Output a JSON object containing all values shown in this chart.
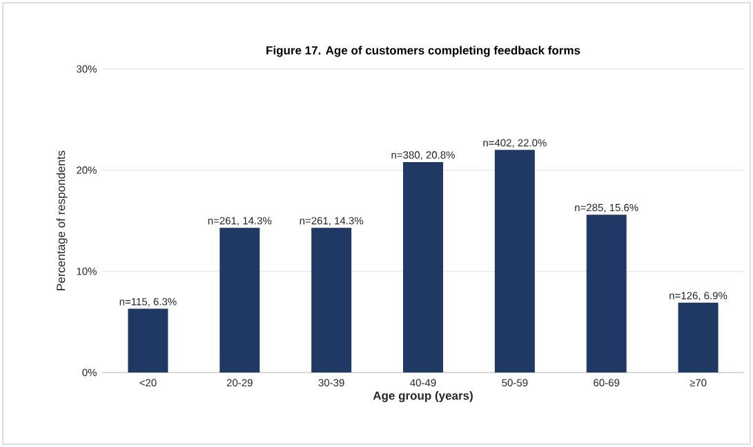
{
  "chart_data": {
    "type": "bar",
    "title": "Figure 17. Age of customers completing feedback forms",
    "xlabel": "Age group (years)",
    "ylabel": "Percentage of respondents",
    "categories": [
      "<20",
      "20-29",
      "30-39",
      "40-49",
      "50-59",
      "60-69",
      "≥70"
    ],
    "values": [
      6.3,
      14.3,
      14.3,
      20.8,
      22.0,
      15.6,
      6.9
    ],
    "value_labels": [
      "n=115, 6.3%",
      "n=261, 14.3%",
      "n=261, 14.3%",
      "n=380, 20.8%",
      "n=402, 22.0%",
      "n=285, 15.6%",
      "n=126, 6.9%"
    ],
    "color": "#203864",
    "ylim": [
      0,
      30
    ],
    "yticks": [
      {
        "value": 0,
        "label": "0%"
      },
      {
        "value": 10,
        "label": "10%"
      },
      {
        "value": 20,
        "label": "20%"
      },
      {
        "value": 30,
        "label": "30%"
      }
    ],
    "grid": "y"
  }
}
